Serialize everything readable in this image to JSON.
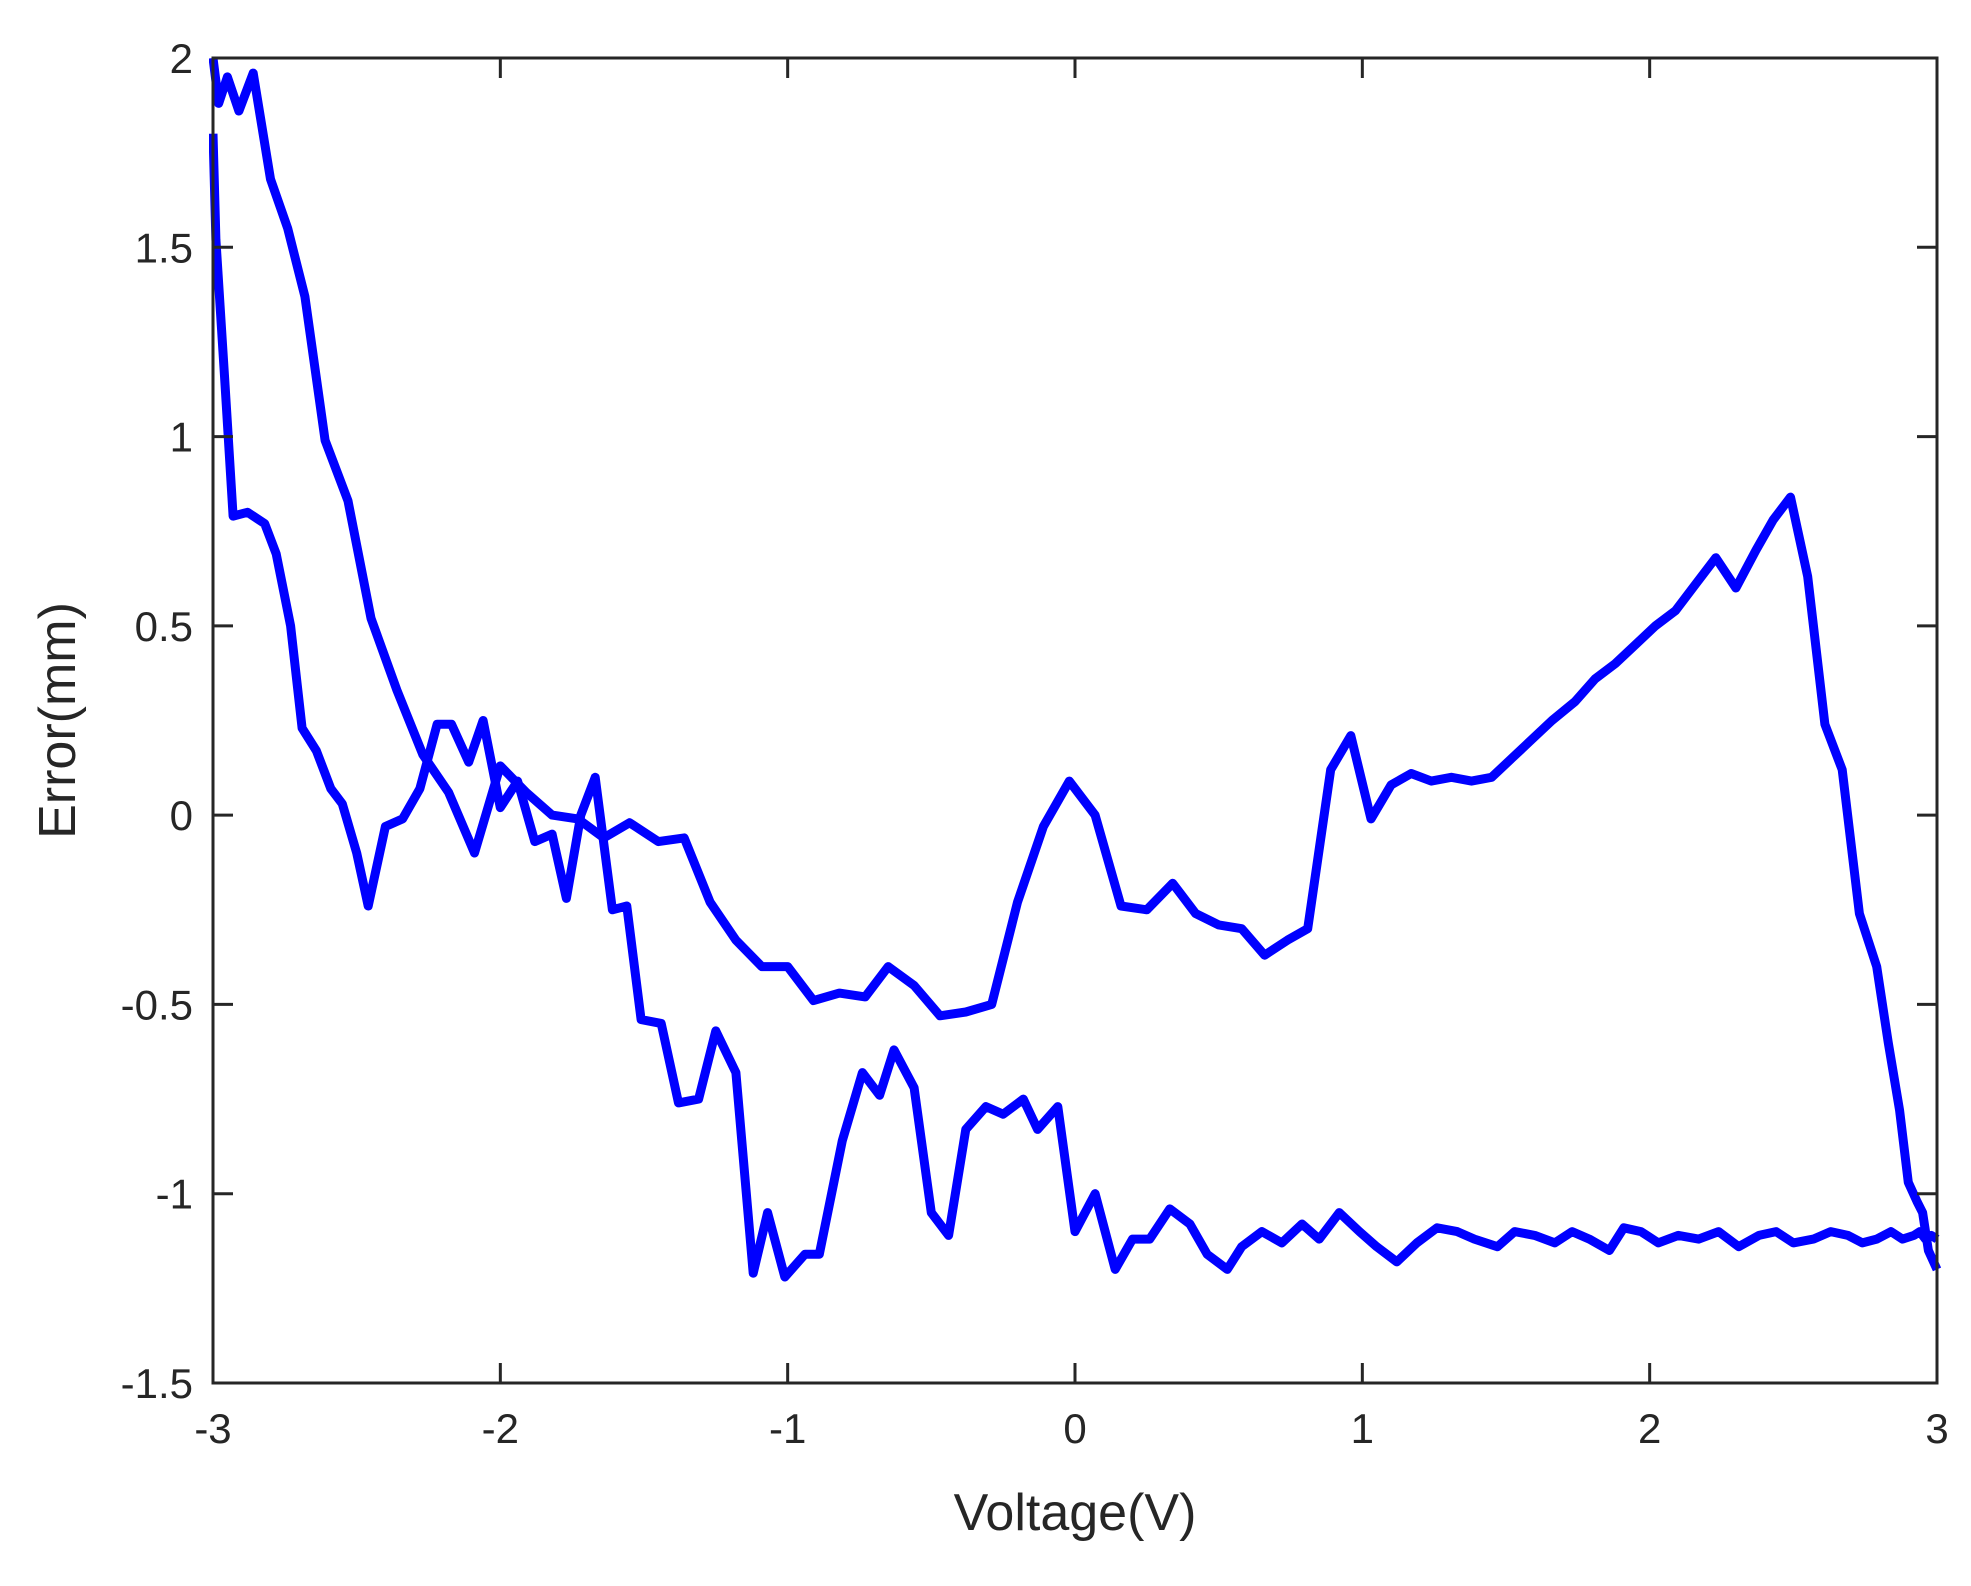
{
  "chart_data": {
    "type": "line",
    "title": "",
    "xlabel": "Voltage(V)",
    "ylabel": "Error(mm)",
    "xlim": [
      -3,
      3
    ],
    "ylim": [
      -1.5,
      2
    ],
    "xticks": [
      -3,
      -2,
      -1,
      0,
      1,
      2,
      3
    ],
    "yticks": [
      -1.5,
      -1,
      -0.5,
      0,
      0.5,
      1,
      1.5,
      2
    ],
    "xtick_labels": [
      "-3",
      "-2",
      "-1",
      "0",
      "1",
      "2",
      "3"
    ],
    "ytick_labels": [
      "-1.5",
      "-1",
      "-0.5",
      "0",
      "0.5",
      "1",
      "1.5",
      "2"
    ],
    "grid": false,
    "line_color": "#0000ff",
    "axis_color": "#262626",
    "series": [
      {
        "x": [
          -3.0,
          -2.99,
          -2.96,
          -2.93,
          -2.88,
          -2.82,
          -2.78,
          -2.73,
          -2.69,
          -2.64,
          -2.59,
          -2.55,
          -2.5,
          -2.46,
          -2.4,
          -2.34,
          -2.28,
          -2.22,
          -2.17,
          -2.11,
          -2.06,
          -2.0,
          -1.94,
          -1.88,
          -1.82,
          -1.77,
          -1.72,
          -1.67,
          -1.61,
          -1.56,
          -1.51,
          -1.44,
          -1.38,
          -1.31,
          -1.25,
          -1.18,
          -1.12,
          -1.07,
          -1.01,
          -0.94,
          -0.89,
          -0.81,
          -0.74,
          -0.68,
          -0.63,
          -0.56,
          -0.5,
          -0.44,
          -0.38,
          -0.31,
          -0.25,
          -0.18,
          -0.13,
          -0.06,
          0.0,
          0.07,
          0.14,
          0.2,
          0.26,
          0.33,
          0.4,
          0.46,
          0.53,
          0.58,
          0.65,
          0.72,
          0.79,
          0.85,
          0.92,
          0.99,
          1.05,
          1.12,
          1.19,
          1.26,
          1.33,
          1.39,
          1.47,
          1.53,
          1.6,
          1.67,
          1.73,
          1.79,
          1.86,
          1.91,
          1.97,
          2.03,
          2.1,
          2.17,
          2.24,
          2.31,
          2.38,
          2.44,
          2.5,
          2.57,
          2.63,
          2.69,
          2.74,
          2.79,
          2.84,
          2.88,
          2.92,
          2.94,
          2.96,
          2.98,
          3.0
        ],
        "y": [
          1.8,
          1.52,
          1.16,
          0.79,
          0.8,
          0.77,
          0.69,
          0.5,
          0.23,
          0.17,
          0.07,
          0.03,
          -0.1,
          -0.24,
          -0.03,
          -0.01,
          0.07,
          0.24,
          0.24,
          0.14,
          0.25,
          0.02,
          0.09,
          -0.07,
          -0.05,
          -0.22,
          0.0,
          0.1,
          -0.25,
          -0.24,
          -0.54,
          -0.55,
          -0.76,
          -0.75,
          -0.57,
          -0.68,
          -1.21,
          -1.05,
          -1.22,
          -1.16,
          -1.16,
          -0.86,
          -0.68,
          -0.74,
          -0.62,
          -0.72,
          -1.05,
          -1.11,
          -0.83,
          -0.77,
          -0.79,
          -0.75,
          -0.83,
          -0.77,
          -1.1,
          -1.0,
          -1.2,
          -1.12,
          -1.12,
          -1.04,
          -1.08,
          -1.16,
          -1.2,
          -1.14,
          -1.1,
          -1.13,
          -1.08,
          -1.12,
          -1.05,
          -1.1,
          -1.14,
          -1.18,
          -1.13,
          -1.09,
          -1.1,
          -1.12,
          -1.14,
          -1.1,
          -1.11,
          -1.13,
          -1.1,
          -1.12,
          -1.15,
          -1.09,
          -1.1,
          -1.13,
          -1.11,
          -1.12,
          -1.1,
          -1.14,
          -1.11,
          -1.1,
          -1.13,
          -1.12,
          -1.1,
          -1.11,
          -1.13,
          -1.12,
          -1.1,
          -1.12,
          -1.11,
          -1.1,
          -1.12,
          -1.11,
          -1.12
        ]
      },
      {
        "x": [
          3.0,
          2.97,
          2.95,
          2.93,
          2.9,
          2.87,
          2.83,
          2.79,
          2.73,
          2.67,
          2.61,
          2.55,
          2.49,
          2.43,
          2.37,
          2.3,
          2.23,
          2.16,
          2.09,
          2.02,
          1.95,
          1.88,
          1.81,
          1.74,
          1.66,
          1.59,
          1.52,
          1.45,
          1.38,
          1.31,
          1.24,
          1.17,
          1.1,
          1.03,
          0.96,
          0.89,
          0.81,
          0.74,
          0.66,
          0.58,
          0.5,
          0.42,
          0.34,
          0.25,
          0.16,
          0.07,
          -0.02,
          -0.11,
          -0.2,
          -0.29,
          -0.38,
          -0.47,
          -0.56,
          -0.65,
          -0.73,
          -0.82,
          -0.91,
          -1.0,
          -1.09,
          -1.18,
          -1.27,
          -1.36,
          -1.45,
          -1.55,
          -1.64,
          -1.73,
          -1.82,
          -1.91,
          -2.0,
          -2.09,
          -2.18,
          -2.27,
          -2.36,
          -2.45,
          -2.53,
          -2.61,
          -2.68,
          -2.74,
          -2.8,
          -2.86,
          -2.91,
          -2.95,
          -2.98,
          -3.0
        ],
        "y": [
          -1.2,
          -1.15,
          -1.05,
          -1.02,
          -0.97,
          -0.78,
          -0.6,
          -0.4,
          -0.26,
          0.12,
          0.24,
          0.63,
          0.84,
          0.78,
          0.7,
          0.6,
          0.68,
          0.61,
          0.54,
          0.5,
          0.45,
          0.4,
          0.36,
          0.3,
          0.25,
          0.2,
          0.15,
          0.1,
          0.09,
          0.1,
          0.09,
          0.11,
          0.08,
          -0.01,
          0.21,
          0.12,
          -0.3,
          -0.33,
          -0.37,
          -0.3,
          -0.29,
          -0.26,
          -0.18,
          -0.25,
          -0.24,
          0.0,
          0.09,
          -0.03,
          -0.23,
          -0.5,
          -0.52,
          -0.53,
          -0.45,
          -0.4,
          -0.48,
          -0.47,
          -0.49,
          -0.4,
          -0.4,
          -0.33,
          -0.23,
          -0.06,
          -0.07,
          -0.02,
          -0.06,
          -0.01,
          0.0,
          0.06,
          0.13,
          -0.1,
          0.06,
          0.16,
          0.33,
          0.52,
          0.83,
          0.99,
          1.37,
          1.55,
          1.68,
          1.96,
          1.86,
          1.95,
          1.88,
          2.0
        ]
      }
    ]
  }
}
